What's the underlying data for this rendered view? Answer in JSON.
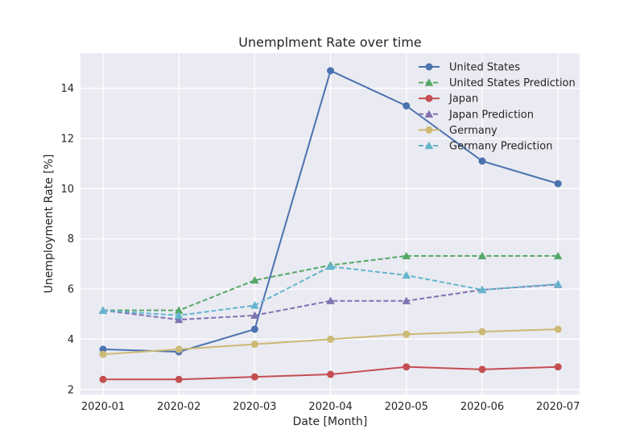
{
  "chart_data": {
    "type": "line",
    "title": "Unemplment Rate over time",
    "xlabel": "Date [Month]",
    "ylabel": "Unemployment Rate [%]",
    "x": [
      "2020-01",
      "2020-02",
      "2020-03",
      "2020-04",
      "2020-05",
      "2020-06",
      "2020-07"
    ],
    "ylim": [
      1.8,
      15.4
    ],
    "yticks": [
      "2",
      "4",
      "6",
      "8",
      "10",
      "12",
      "14"
    ],
    "grid": true,
    "legend_position": "top-right",
    "background": "#eaeaf2",
    "series": [
      {
        "name": "United States",
        "color": "#4c72b0",
        "style": "solid",
        "marker": "circle",
        "values": [
          3.6,
          3.5,
          4.4,
          14.7,
          13.3,
          11.1,
          10.2
        ]
      },
      {
        "name": "United States Prediction",
        "color": "#55a868",
        "style": "dashed",
        "marker": "triangle",
        "values": [
          5.15,
          5.15,
          6.35,
          6.95,
          7.32,
          7.32,
          7.32
        ]
      },
      {
        "name": "Japan",
        "color": "#c44e52",
        "style": "solid",
        "marker": "circle",
        "values": [
          2.4,
          2.4,
          2.5,
          2.6,
          2.9,
          2.8,
          2.9
        ]
      },
      {
        "name": "Japan Prediction",
        "color": "#8172b2",
        "style": "dashed",
        "marker": "triangle",
        "values": [
          5.15,
          4.78,
          4.95,
          5.53,
          5.53,
          5.97,
          6.18
        ]
      },
      {
        "name": "Germany",
        "color": "#ccb974",
        "style": "solid",
        "marker": "circle",
        "values": [
          3.4,
          3.6,
          3.8,
          4.0,
          4.2,
          4.3,
          4.4
        ]
      },
      {
        "name": "Germany Prediction",
        "color": "#64b5cd",
        "style": "dashed",
        "marker": "triangle",
        "values": [
          5.15,
          4.95,
          5.35,
          6.9,
          6.55,
          5.97,
          6.2
        ]
      }
    ]
  }
}
